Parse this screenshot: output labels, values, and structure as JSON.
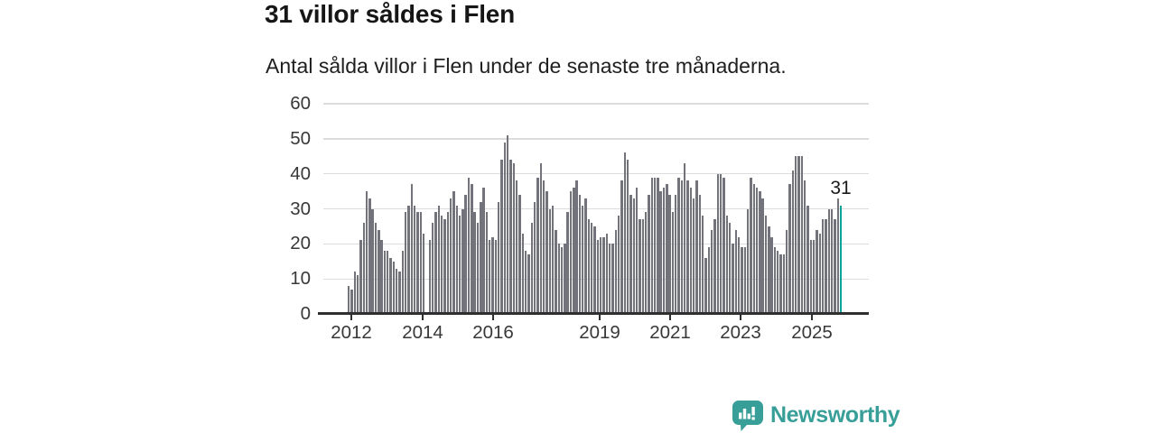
{
  "title": "31 villor såldes i Flen",
  "subtitle": "Antal sålda villor i Flen under de senaste tre månaderna.",
  "branding": {
    "name": "Newsworthy",
    "color": "#379e98"
  },
  "colors": {
    "bar": "#73737b",
    "highlight": "#0ba29a",
    "grid": "#dcdcdc",
    "axis": "#2f2f2f",
    "text": "#383838"
  },
  "chart_data": {
    "type": "bar",
    "title": "31 villor såldes i Flen",
    "subtitle": "Antal sålda villor i Flen under de senaste tre månaderna.",
    "ylabel": "",
    "xlabel": "",
    "ylim": [
      0,
      60
    ],
    "y_ticks": [
      0,
      10,
      20,
      30,
      40,
      50,
      60
    ],
    "x_tick_labels": [
      "2012",
      "2014",
      "2016",
      "2019",
      "2021",
      "2023",
      "2025"
    ],
    "grid": "horizontal",
    "legend": "none",
    "highlight_last": true,
    "last_value_label": "31",
    "x_start": "2012",
    "x_end": "2025",
    "values": [
      8,
      7,
      12,
      11,
      21,
      26,
      35,
      33,
      30,
      26,
      24,
      21,
      18,
      18,
      16,
      15,
      13,
      12,
      18,
      29,
      31,
      37,
      31,
      29,
      29,
      23,
      0,
      21,
      26,
      29,
      31,
      28,
      27,
      29,
      33,
      35,
      31,
      28,
      30,
      34,
      39,
      37,
      29,
      26,
      32,
      36,
      29,
      21,
      22,
      21,
      32,
      44,
      49,
      51,
      44,
      43,
      38,
      34,
      23,
      18,
      17,
      26,
      32,
      39,
      43,
      38,
      35,
      30,
      31,
      24,
      20,
      19,
      20,
      29,
      35,
      36,
      38,
      34,
      31,
      33,
      27,
      26,
      25,
      21,
      22,
      22,
      23,
      20,
      20,
      24,
      28,
      38,
      46,
      44,
      34,
      33,
      36,
      27,
      27,
      29,
      34,
      39,
      39,
      39,
      35,
      36,
      37,
      34,
      29,
      34,
      39,
      38,
      43,
      38,
      36,
      33,
      38,
      34,
      28,
      16,
      19,
      24,
      27,
      40,
      40,
      39,
      28,
      26,
      20,
      24,
      22,
      19,
      19,
      30,
      39,
      37,
      36,
      35,
      33,
      28,
      25,
      22,
      19,
      18,
      17,
      17,
      24,
      37,
      41,
      45,
      45,
      45,
      38,
      31,
      21,
      21,
      24,
      23,
      27,
      27,
      30,
      30,
      27,
      33,
      31
    ]
  }
}
